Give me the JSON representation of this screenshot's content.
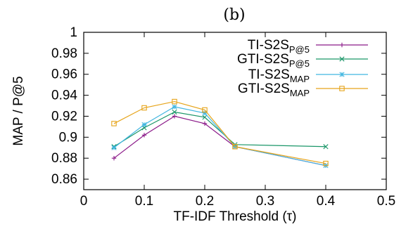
{
  "chart_data": {
    "type": "line",
    "panel_label": "(b)",
    "xlabel": "TF-IDF Threshold (τ)",
    "ylabel": "MAP / P@5",
    "xlim": [
      0,
      0.5
    ],
    "ylim": [
      0.85,
      1.0
    ],
    "x_ticks": [
      0,
      0.1,
      0.2,
      0.3,
      0.4,
      0.5
    ],
    "y_ticks": [
      0.86,
      0.88,
      0.9,
      0.92,
      0.94,
      0.96,
      0.98,
      1
    ],
    "x_tick_labels": [
      "0",
      "0.1",
      "0.2",
      "0.3",
      "0.4",
      "0.5"
    ],
    "y_tick_labels": [
      "0.86",
      "0.88",
      "0.9",
      "0.92",
      "0.94",
      "0.96",
      "0.98",
      "1"
    ],
    "grid": false,
    "legend_position": "top-right",
    "x": [
      0.05,
      0.1,
      0.15,
      0.2,
      0.25,
      0.4
    ],
    "series": [
      {
        "name": "TI-S2S",
        "subscript": "P@5",
        "marker": "plus",
        "color": "#8b1a89",
        "values": [
          0.88,
          0.902,
          0.92,
          0.913,
          0.891,
          0.873
        ]
      },
      {
        "name": "GTI-S2S",
        "subscript": "P@5",
        "marker": "x",
        "color": "#1a9668",
        "values": [
          0.891,
          0.909,
          0.924,
          0.919,
          0.893,
          0.891
        ]
      },
      {
        "name": "TI-S2S",
        "subscript": "MAP",
        "marker": "star",
        "color": "#42b6e0",
        "values": [
          0.89,
          0.912,
          0.929,
          0.923,
          0.891,
          0.873
        ]
      },
      {
        "name": "GTI-S2S",
        "subscript": "MAP",
        "marker": "square",
        "color": "#e6a41a",
        "values": [
          0.913,
          0.928,
          0.934,
          0.926,
          0.891,
          0.875
        ]
      }
    ]
  }
}
